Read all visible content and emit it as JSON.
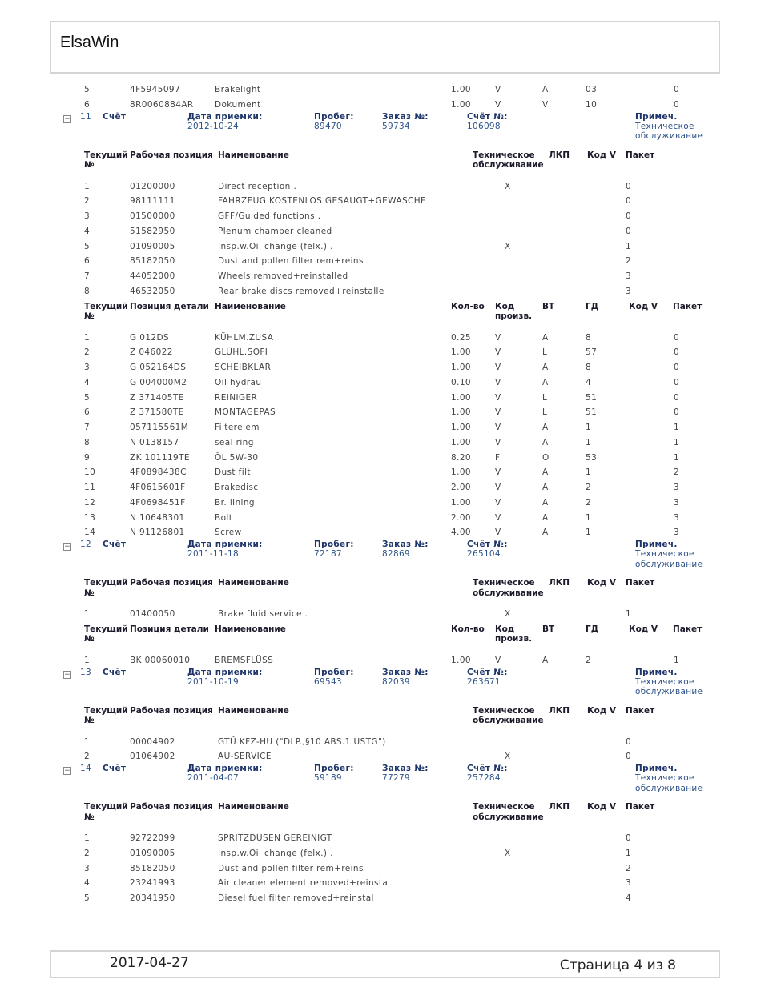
{
  "app_title": "ElsaWin",
  "footer": {
    "date": "2017-04-27",
    "page": "Страница 4 из 8"
  },
  "labels": {
    "invoice": "Счёт",
    "date": "Дата приемки:",
    "mileage": "Пробег:",
    "order": "Заказ №:",
    "invoice_no": "Счёт №:",
    "note": "Примеч.",
    "work_headers": [
      "Текущий\n№",
      "Рабочая позиция",
      "Наименование",
      "Техническое\nобслуживание",
      "ЛКП",
      "Код V",
      "Пакет"
    ],
    "parts_headers": [
      "Текущий\n№",
      "Позиция детали",
      "Наименование",
      "Кол-во",
      "Код\nпроизв.",
      "ВТ",
      "ГД",
      "Код V",
      "Пакет"
    ]
  },
  "carryover_parts": [
    [
      "5",
      "4F5945097",
      "Brakelight",
      "1.00",
      "V",
      "A",
      "03",
      "",
      "0"
    ],
    [
      "6",
      "8R0060884AR",
      "Dokument",
      "1.00",
      "V",
      "V",
      "10",
      "",
      "0"
    ]
  ],
  "sections": [
    {
      "number": "11",
      "date": "2012-10-24",
      "mileage": "89470",
      "order": "59734",
      "invoice_no": "106098",
      "note": "Техническое\nобслуживание",
      "work": [
        [
          "1",
          "01200000",
          "Direct reception .",
          "X",
          "",
          "",
          "0"
        ],
        [
          "2",
          "98111111",
          "FAHRZEUG KOSTENLOS GESAUGT+GEWASCHE",
          "",
          "",
          "",
          "0"
        ],
        [
          "3",
          "01500000",
          "GFF/Guided functions .",
          "",
          "",
          "",
          "0"
        ],
        [
          "4",
          "51582950",
          "Plenum chamber cleaned",
          "",
          "",
          "",
          "0"
        ],
        [
          "5",
          "01090005",
          "Insp.w.Oil change (felx.) .",
          "X",
          "",
          "",
          "1"
        ],
        [
          "6",
          "85182050",
          "Dust and pollen filter rem+reins",
          "",
          "",
          "",
          "2"
        ],
        [
          "7",
          "44052000",
          "Wheels removed+reinstalled",
          "",
          "",
          "",
          "3"
        ],
        [
          "8",
          "46532050",
          "Rear brake discs removed+reinstalle",
          "",
          "",
          "",
          "3"
        ]
      ],
      "parts": [
        [
          "1",
          "G 012DS",
          "KÜHLM.ZUSA",
          "0.25",
          "V",
          "A",
          "8",
          "",
          "0"
        ],
        [
          "2",
          "Z 046022",
          "GLÜHL.SOFI",
          "1.00",
          "V",
          "L",
          "57",
          "",
          "0"
        ],
        [
          "3",
          "G 052164DS",
          "SCHEIBKLAR",
          "1.00",
          "V",
          "A",
          "8",
          "",
          "0"
        ],
        [
          "4",
          "G 004000M2",
          "Oil hydrau",
          "0.10",
          "V",
          "A",
          "4",
          "",
          "0"
        ],
        [
          "5",
          "Z 371405TE",
          "REINIGER",
          "1.00",
          "V",
          "L",
          "51",
          "",
          "0"
        ],
        [
          "6",
          "Z 371580TE",
          "MONTAGEPAS",
          "1.00",
          "V",
          "L",
          "51",
          "",
          "0"
        ],
        [
          "7",
          "057115561M",
          "Filterelem",
          "1.00",
          "V",
          "A",
          "1",
          "",
          "1"
        ],
        [
          "8",
          "N 0138157",
          "seal ring",
          "1.00",
          "V",
          "A",
          "1",
          "",
          "1"
        ],
        [
          "9",
          "ZK 101119TE",
          "ÖL 5W-30",
          "8.20",
          "F",
          "O",
          "53",
          "",
          "1"
        ],
        [
          "10",
          "4F0898438C",
          "Dust filt.",
          "1.00",
          "V",
          "A",
          "1",
          "",
          "2"
        ],
        [
          "11",
          "4F0615601F",
          "Brakedisc",
          "2.00",
          "V",
          "A",
          "2",
          "",
          "3"
        ],
        [
          "12",
          "4F0698451F",
          "Br. lining",
          "1.00",
          "V",
          "A",
          "2",
          "",
          "3"
        ],
        [
          "13",
          "N 10648301",
          "Bolt",
          "2.00",
          "V",
          "A",
          "1",
          "",
          "3"
        ],
        [
          "14",
          "N 91126801",
          "Screw",
          "4.00",
          "V",
          "A",
          "1",
          "",
          "3"
        ]
      ]
    },
    {
      "number": "12",
      "date": "2011-11-18",
      "mileage": "72187",
      "order": "82869",
      "invoice_no": "265104",
      "note": "Техническое\nобслуживание",
      "work": [
        [
          "1",
          "01400050",
          "Brake fluid service .",
          "X",
          "",
          "",
          "1"
        ]
      ],
      "parts": [
        [
          "1",
          "BK 00060010",
          "BREMSFLÜSS",
          "1.00",
          "V",
          "A",
          "2",
          "",
          "1"
        ]
      ]
    },
    {
      "number": "13",
      "date": "2011-10-19",
      "mileage": "69543",
      "order": "82039",
      "invoice_no": "263671",
      "note": "Техническое\nобслуживание",
      "work": [
        [
          "1",
          "00004902",
          "GTÜ KFZ-HU (\"DLP.,§10 ABS.1 USTG\")",
          "",
          "",
          "",
          "0"
        ],
        [
          "2",
          "01064902",
          "AU-SERVICE",
          "X",
          "",
          "",
          "0"
        ]
      ],
      "parts": []
    },
    {
      "number": "14",
      "date": "2011-04-07",
      "mileage": "59189",
      "order": "77279",
      "invoice_no": "257284",
      "note": "Техническое\nобслуживание",
      "work": [
        [
          "1",
          "92722099",
          "SPRITZDÜSEN GEREINIGT",
          "",
          "",
          "",
          "0"
        ],
        [
          "2",
          "01090005",
          "Insp.w.Oil change (felx.) .",
          "X",
          "",
          "",
          "1"
        ],
        [
          "3",
          "85182050",
          "Dust and pollen filter rem+reins",
          "",
          "",
          "",
          "2"
        ],
        [
          "4",
          "23241993",
          "Air cleaner element removed+reinsta",
          "",
          "",
          "",
          "3"
        ],
        [
          "5",
          "20341950",
          "Diesel fuel filter removed+reinstal",
          "",
          "",
          "",
          "4"
        ]
      ],
      "parts": []
    }
  ]
}
